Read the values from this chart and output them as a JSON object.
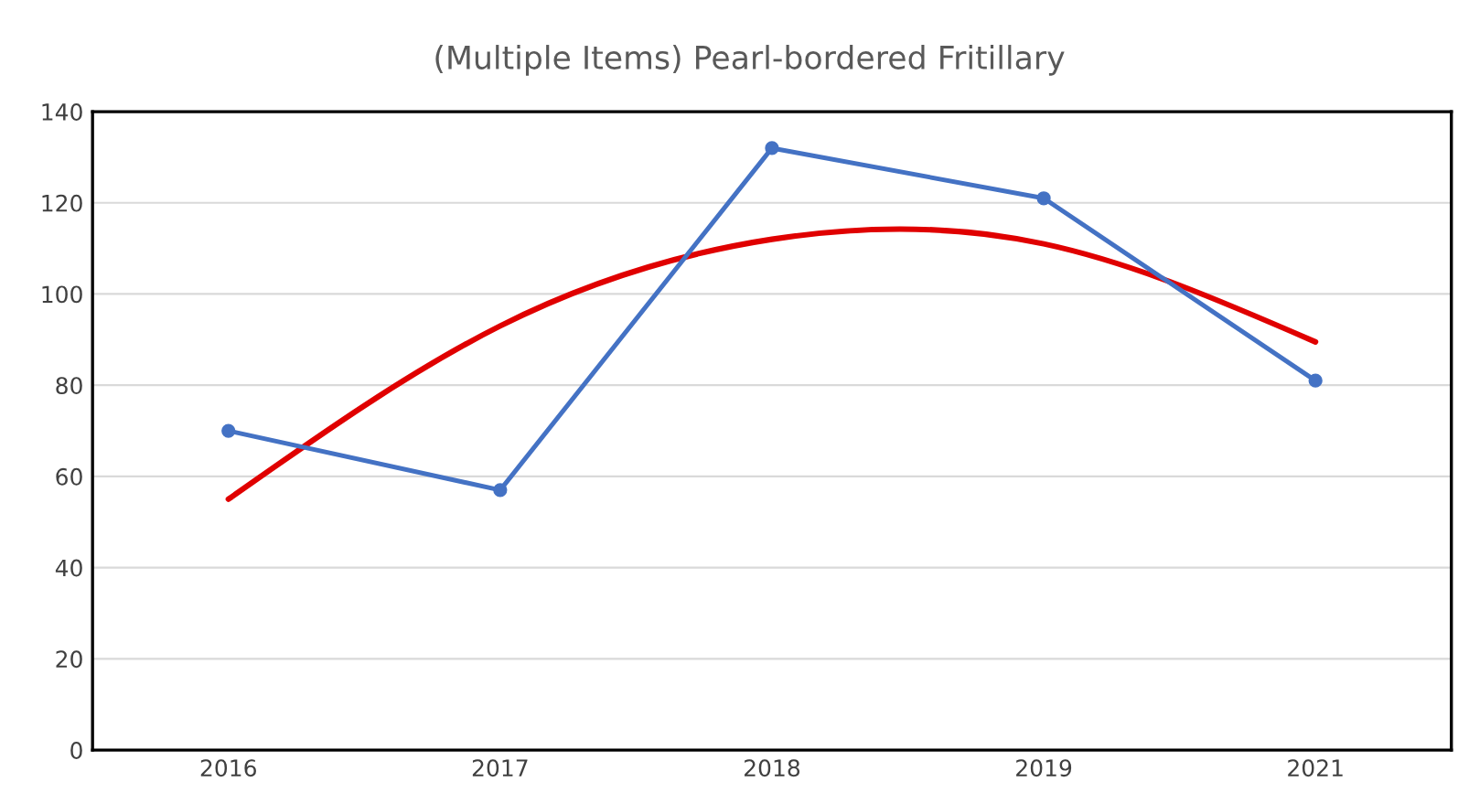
{
  "chart_data": {
    "type": "line",
    "title": "(Multiple Items) Pearl-bordered Fritillary",
    "categories": [
      "2016",
      "2017",
      "2018",
      "2019",
      "2021"
    ],
    "series": [
      {
        "color": "#4472c4",
        "values": [
          70,
          57,
          132,
          121,
          81
        ],
        "marker": "circle"
      },
      {
        "type": "line",
        "color": "#e00000",
        "values": [
          55,
          93,
          112,
          111,
          89.5
        ],
        "marker": "none",
        "line_style": "solid"
      }
    ],
    "ylim": [
      0,
      140
    ],
    "yticks": [
      0,
      20,
      40,
      60,
      80,
      100,
      120,
      140
    ],
    "grid": "y",
    "legend": false
  }
}
